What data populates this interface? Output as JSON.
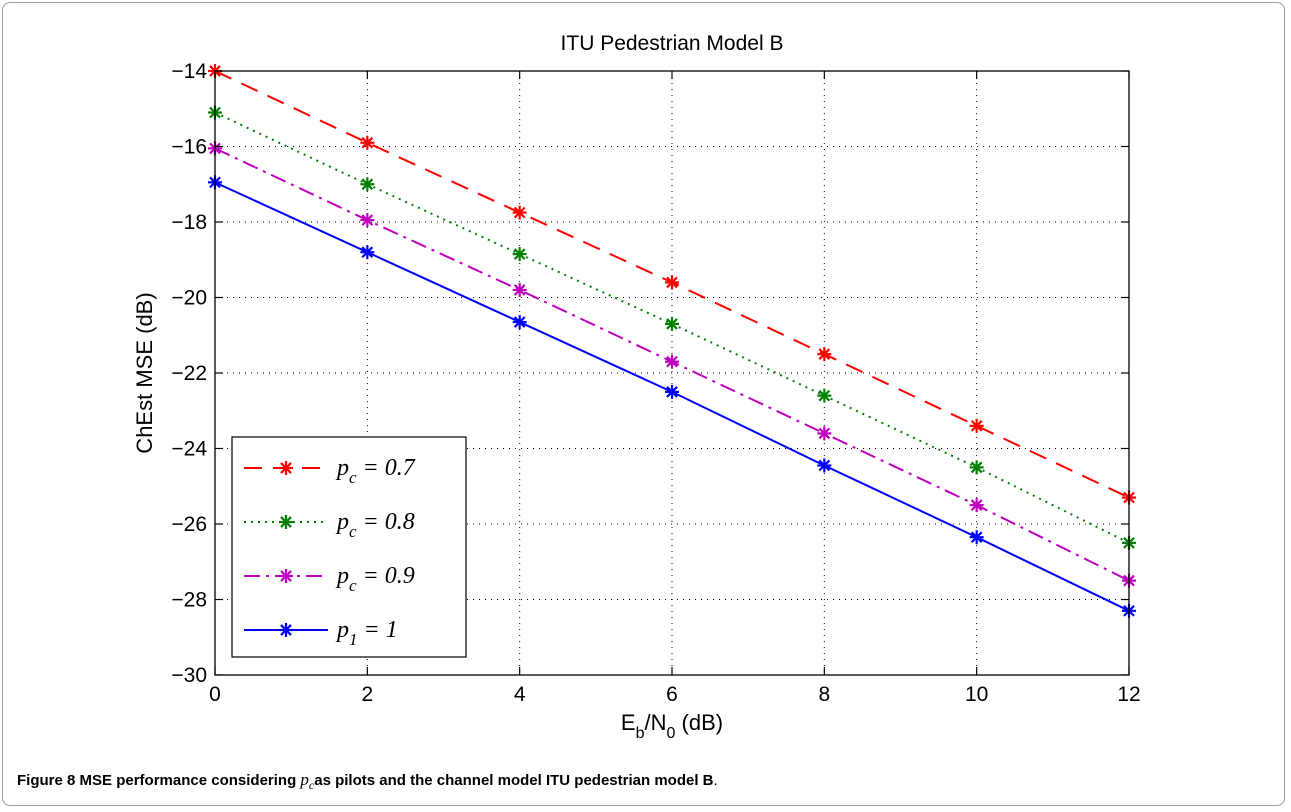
{
  "chart_data": {
    "type": "line",
    "title": "ITU Pedestrian Model B",
    "ylabel": "ChEst MSE (dB)",
    "xlabel": {
      "main": "E",
      "sub1": "b",
      "slash": "/N",
      "sub2": "0",
      "unit": " (dB)"
    },
    "xlim": [
      0,
      12
    ],
    "ylim": [
      -30,
      -14
    ],
    "xticks": [
      0,
      2,
      4,
      6,
      8,
      10,
      12
    ],
    "yticks": [
      -30,
      -28,
      -26,
      -24,
      -22,
      -20,
      -18,
      -16,
      -14
    ],
    "xtick_labels": [
      "0",
      "2",
      "4",
      "6",
      "8",
      "10",
      "12"
    ],
    "ytick_labels": [
      "−30",
      "−28",
      "−26",
      "−24",
      "−22",
      "−20",
      "−18",
      "−16",
      "−14"
    ],
    "grid": true,
    "legend_position": "bottom-left",
    "x": [
      0,
      2,
      4,
      6,
      8,
      10,
      12
    ],
    "series": [
      {
        "name": "p_c = 0.7",
        "label_main": "p",
        "label_sub": "c",
        "label_rest": " = 0.7",
        "color": "#ff0000",
        "dash": "18,11",
        "values": [
          -14.0,
          -15.9,
          -17.75,
          -19.6,
          -21.5,
          -23.4,
          -25.3
        ]
      },
      {
        "name": "p_c = 0.8",
        "label_main": "p",
        "label_sub": "c",
        "label_rest": " = 0.8",
        "color": "#008000",
        "dash": "2,5",
        "values": [
          -15.1,
          -17.0,
          -18.85,
          -20.7,
          -22.6,
          -24.5,
          -26.5
        ]
      },
      {
        "name": "p_c = 0.9",
        "label_main": "p",
        "label_sub": "c",
        "label_rest": " = 0.9",
        "color": "#bf00bf",
        "dash": "16,6,3,6",
        "values": [
          -16.05,
          -17.95,
          -19.8,
          -21.7,
          -23.6,
          -25.5,
          -27.5
        ]
      },
      {
        "name": "p_1 = 1",
        "label_main": "p",
        "label_sub": "1",
        "label_rest": " = 1",
        "color": "#0000ff",
        "dash": "",
        "values": [
          -16.95,
          -18.8,
          -20.65,
          -22.5,
          -24.45,
          -26.35,
          -28.3
        ]
      }
    ]
  },
  "caption": {
    "figure_label": "Figure 8",
    "text_before": " MSE performance considering ",
    "symbol_main": "p",
    "symbol_sub": "c",
    "text_after": "as pilots and the channel model ITU pedestrian model B",
    "suffix": "."
  }
}
